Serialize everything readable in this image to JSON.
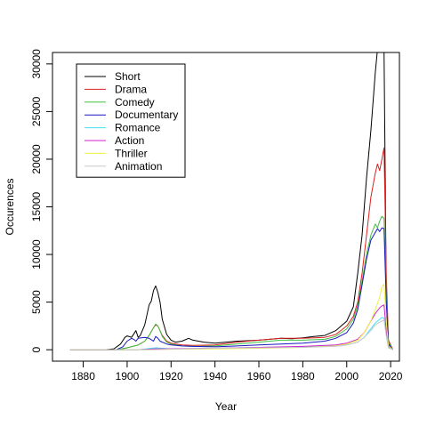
{
  "chart_data": {
    "type": "line",
    "xlabel": "Year",
    "ylabel": "Occurences",
    "xlim": [
      1866,
      2024
    ],
    "ylim": [
      -1200,
      31200
    ],
    "x_ticks": [
      1880,
      1900,
      1920,
      1940,
      1960,
      1980,
      2000,
      2020
    ],
    "y_ticks": [
      0,
      5000,
      10000,
      15000,
      20000,
      25000,
      30000
    ],
    "x_tick_labels": [
      "1880",
      "1900",
      "1920",
      "1940",
      "1960",
      "1980",
      "2000",
      "2020"
    ],
    "y_tick_labels": [
      "0",
      "5000",
      "10000",
      "15000",
      "20000",
      "25000",
      "30000"
    ],
    "legend_position": "top-left",
    "grid": false,
    "series": [
      {
        "name": "Short",
        "color": "#000000",
        "x": [
          1874,
          1890,
          1894,
          1897,
          1899,
          1900,
          1902,
          1904,
          1905,
          1906,
          1908,
          1910,
          1911,
          1912,
          1913,
          1914,
          1915,
          1916,
          1918,
          1920,
          1922,
          1925,
          1928,
          1930,
          1935,
          1940,
          1945,
          1950,
          1955,
          1960,
          1965,
          1970,
          1975,
          1980,
          1985,
          1990,
          1995,
          2000,
          2003,
          2005,
          2007,
          2009,
          2011,
          2013,
          2014,
          2015,
          2016,
          2017,
          2018,
          2019,
          2021
        ],
        "y": [
          0,
          0,
          100,
          600,
          1300,
          1450,
          1300,
          2000,
          1300,
          1500,
          2600,
          4700,
          5100,
          6200,
          6700,
          6000,
          5000,
          3200,
          1600,
          1000,
          800,
          900,
          1200,
          1000,
          800,
          700,
          800,
          900,
          950,
          1000,
          1100,
          1200,
          1150,
          1250,
          1400,
          1500,
          2000,
          3000,
          4500,
          8000,
          12000,
          18000,
          23000,
          29000,
          31500,
          31500,
          31500,
          31500,
          6000,
          500,
          0
        ]
      },
      {
        "name": "Drama",
        "color": "#df2020",
        "x": [
          1874,
          1895,
          1900,
          1905,
          1908,
          1910,
          1911,
          1912,
          1913,
          1914,
          1915,
          1916,
          1918,
          1920,
          1925,
          1930,
          1940,
          1950,
          1960,
          1970,
          1980,
          1990,
          1995,
          2000,
          2003,
          2005,
          2007,
          2009,
          2011,
          2013,
          2014,
          2015,
          2016,
          2017,
          2018,
          2019,
          2021
        ],
        "y": [
          0,
          0,
          200,
          500,
          900,
          1500,
          1900,
          2300,
          2600,
          2500,
          2000,
          1500,
          900,
          700,
          500,
          450,
          500,
          800,
          1000,
          1200,
          1200,
          1300,
          1600,
          2500,
          3500,
          5000,
          8000,
          12000,
          16000,
          18500,
          19500,
          18800,
          20000,
          21200,
          8000,
          1000,
          0
        ]
      },
      {
        "name": "Comedy",
        "color": "#40c040",
        "x": [
          1874,
          1895,
          1900,
          1905,
          1908,
          1910,
          1911,
          1912,
          1913,
          1914,
          1915,
          1916,
          1918,
          1920,
          1925,
          1930,
          1940,
          1950,
          1960,
          1970,
          1980,
          1990,
          1995,
          2000,
          2003,
          2005,
          2007,
          2009,
          2011,
          2013,
          2014,
          2015,
          2016,
          2017,
          2018,
          2019,
          2021
        ],
        "y": [
          0,
          0,
          200,
          500,
          900,
          1500,
          1900,
          2300,
          2700,
          2500,
          2000,
          1400,
          800,
          600,
          400,
          350,
          400,
          600,
          800,
          1000,
          1000,
          1100,
          1400,
          2200,
          3200,
          4600,
          7200,
          10000,
          12000,
          13200,
          12800,
          13500,
          14000,
          13800,
          6000,
          800,
          0
        ]
      },
      {
        "name": "Documentary",
        "color": "#1818c0",
        "x": [
          1874,
          1895,
          1898,
          1900,
          1902,
          1903,
          1904,
          1905,
          1908,
          1910,
          1912,
          1913,
          1914,
          1915,
          1918,
          1920,
          1925,
          1930,
          1940,
          1950,
          1960,
          1970,
          1980,
          1990,
          1995,
          2000,
          2003,
          2005,
          2007,
          2009,
          2011,
          2013,
          2014,
          2015,
          2016,
          2017,
          2018,
          2019,
          2021
        ],
        "y": [
          0,
          0,
          300,
          900,
          1200,
          1100,
          900,
          1200,
          1300,
          1200,
          900,
          1400,
          1200,
          900,
          600,
          500,
          400,
          350,
          300,
          400,
          500,
          600,
          700,
          900,
          1200,
          1800,
          2800,
          4200,
          6800,
          9500,
          11500,
          12300,
          12700,
          12400,
          12800,
          12700,
          5000,
          600,
          0
        ]
      },
      {
        "name": "Romance",
        "color": "#40e0f0",
        "x": [
          1874,
          1905,
          1913,
          1920,
          1940,
          1960,
          1980,
          1995,
          2000,
          2005,
          2008,
          2011,
          2013,
          2015,
          2016,
          2017,
          2018,
          2019,
          2021
        ],
        "y": [
          0,
          0,
          200,
          100,
          150,
          250,
          300,
          400,
          500,
          800,
          1300,
          2200,
          2800,
          3200,
          3400,
          3300,
          1500,
          200,
          0
        ]
      },
      {
        "name": "Action",
        "color": "#d020d0",
        "x": [
          1874,
          1905,
          1913,
          1920,
          1940,
          1960,
          1980,
          1995,
          2000,
          2005,
          2008,
          2011,
          2013,
          2015,
          2016,
          2017,
          2018,
          2019,
          2021
        ],
        "y": [
          0,
          0,
          100,
          100,
          150,
          250,
          350,
          500,
          700,
          1100,
          1800,
          3000,
          3800,
          4400,
          4600,
          4700,
          2000,
          300,
          0
        ]
      },
      {
        "name": "Thriller",
        "color": "#f0f040",
        "x": [
          1874,
          1910,
          1920,
          1940,
          1960,
          1980,
          1995,
          2000,
          2005,
          2008,
          2011,
          2013,
          2015,
          2016,
          2017,
          2018,
          2019,
          2021
        ],
        "y": [
          0,
          0,
          50,
          100,
          150,
          250,
          400,
          600,
          1000,
          1800,
          3000,
          4200,
          5500,
          6600,
          6900,
          3000,
          400,
          0
        ]
      },
      {
        "name": "Animation",
        "color": "#c8c8c8",
        "x": [
          1874,
          1910,
          1920,
          1940,
          1960,
          1980,
          1995,
          2000,
          2005,
          2008,
          2011,
          2013,
          2015,
          2016,
          2017,
          2018,
          2019,
          2021
        ],
        "y": [
          0,
          0,
          50,
          150,
          200,
          250,
          350,
          500,
          800,
          1300,
          2000,
          2600,
          2900,
          3000,
          3100,
          1500,
          200,
          0
        ]
      }
    ]
  }
}
